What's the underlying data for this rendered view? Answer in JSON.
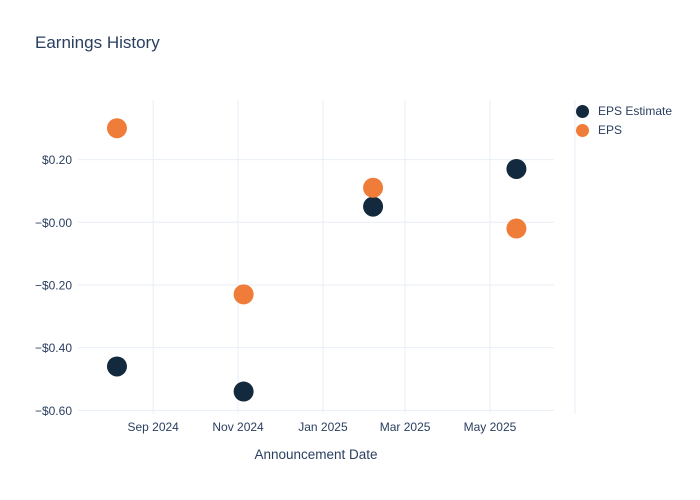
{
  "chart": {
    "title": "Earnings History"
  },
  "chart_data": {
    "type": "scatter",
    "title": "Earnings History",
    "xlabel": "Announcement Date",
    "ylabel": "",
    "grid": true,
    "legend_position": "top-right",
    "background": "#ffffff",
    "grid_color": "#e9eef6",
    "text_color": "#2a3f5f",
    "xlim": [
      "2024-07-09",
      "2025-06-16"
    ],
    "ylim": [
      -0.61,
      0.39
    ],
    "x_ticks": [
      {
        "date": "2024-09-01",
        "label": "Sep 2024"
      },
      {
        "date": "2024-11-01",
        "label": "Nov 2024"
      },
      {
        "date": "2025-01-01",
        "label": "Jan 2025"
      },
      {
        "date": "2025-03-01",
        "label": "Mar 2025"
      },
      {
        "date": "2025-05-01",
        "label": "May 2025"
      },
      {
        "date": "2025-07-01",
        "label": ""
      }
    ],
    "y_ticks": [
      {
        "value": 0.2,
        "label": "$0.20"
      },
      {
        "value": 0.0,
        "label": "−$0.00"
      },
      {
        "value": -0.2,
        "label": "−$0.20"
      },
      {
        "value": -0.4,
        "label": "−$0.40"
      },
      {
        "value": -0.6,
        "label": "−$0.60"
      }
    ],
    "series": [
      {
        "name": "EPS Estimate",
        "color": "#12293e",
        "marker": "circle",
        "points": [
          {
            "x": "2024-08-06",
            "y": -0.46
          },
          {
            "x": "2024-11-05",
            "y": -0.54
          },
          {
            "x": "2025-02-06",
            "y": 0.05
          },
          {
            "x": "2025-05-20",
            "y": 0.17
          }
        ]
      },
      {
        "name": "EPS",
        "color": "#f07c3a",
        "marker": "circle",
        "points": [
          {
            "x": "2024-08-06",
            "y": 0.3
          },
          {
            "x": "2024-11-05",
            "y": -0.23
          },
          {
            "x": "2025-02-06",
            "y": 0.11
          },
          {
            "x": "2025-05-20",
            "y": -0.02
          }
        ]
      }
    ]
  }
}
